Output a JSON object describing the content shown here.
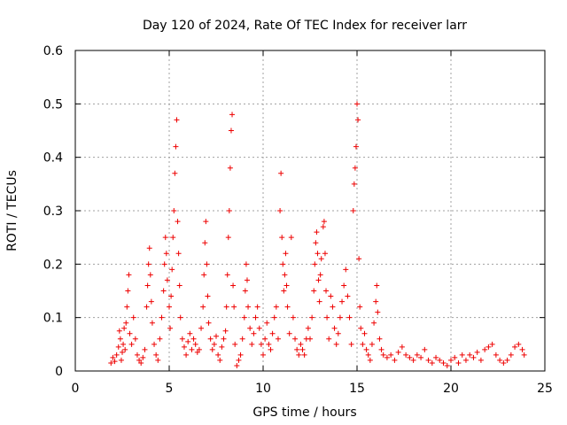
{
  "chart_data": {
    "type": "scatter",
    "title": "Day 120 of 2024, Rate Of TEC Index for receiver larr",
    "xlabel": "GPS time / hours",
    "ylabel": "ROTI / TECUs",
    "xlim": [
      0,
      25
    ],
    "ylim": [
      0,
      0.6
    ],
    "x_ticks": [
      0,
      5,
      10,
      15,
      20,
      25
    ],
    "x_tick_labels": [
      "0",
      "5",
      "10",
      "15",
      "20",
      "25"
    ],
    "y_ticks": [
      0,
      0.1,
      0.2,
      0.3,
      0.4,
      0.5,
      0.6
    ],
    "y_tick_labels": [
      "0",
      "0.1",
      "0.2",
      "0.3",
      "0.4",
      "0.5",
      "0.6"
    ],
    "grid": true,
    "marker": "plus",
    "color": "#ee0000",
    "series": [
      {
        "points": [
          [
            1.9,
            0.015
          ],
          [
            2.0,
            0.025
          ],
          [
            2.1,
            0.018
          ],
          [
            2.2,
            0.03
          ],
          [
            2.3,
            0.045
          ],
          [
            2.35,
            0.075
          ],
          [
            2.4,
            0.06
          ],
          [
            2.45,
            0.02
          ],
          [
            2.5,
            0.035
          ],
          [
            2.55,
            0.05
          ],
          [
            2.6,
            0.08
          ],
          [
            2.65,
            0.04
          ],
          [
            2.7,
            0.09
          ],
          [
            2.75,
            0.12
          ],
          [
            2.8,
            0.15
          ],
          [
            2.85,
            0.18
          ],
          [
            2.9,
            0.07
          ],
          [
            3.0,
            0.05
          ],
          [
            3.1,
            0.1
          ],
          [
            3.2,
            0.06
          ],
          [
            3.3,
            0.03
          ],
          [
            3.4,
            0.02
          ],
          [
            3.5,
            0.015
          ],
          [
            3.6,
            0.025
          ],
          [
            3.7,
            0.04
          ],
          [
            3.8,
            0.12
          ],
          [
            3.85,
            0.16
          ],
          [
            3.9,
            0.2
          ],
          [
            3.95,
            0.23
          ],
          [
            4.0,
            0.18
          ],
          [
            4.05,
            0.13
          ],
          [
            4.1,
            0.09
          ],
          [
            4.2,
            0.05
          ],
          [
            4.3,
            0.03
          ],
          [
            4.4,
            0.02
          ],
          [
            4.5,
            0.06
          ],
          [
            4.6,
            0.1
          ],
          [
            4.7,
            0.15
          ],
          [
            4.75,
            0.2
          ],
          [
            4.8,
            0.25
          ],
          [
            4.85,
            0.22
          ],
          [
            4.9,
            0.17
          ],
          [
            5.0,
            0.12
          ],
          [
            5.05,
            0.08
          ],
          [
            5.1,
            0.14
          ],
          [
            5.15,
            0.19
          ],
          [
            5.2,
            0.25
          ],
          [
            5.25,
            0.3
          ],
          [
            5.3,
            0.37
          ],
          [
            5.35,
            0.42
          ],
          [
            5.4,
            0.47
          ],
          [
            5.45,
            0.28
          ],
          [
            5.5,
            0.22
          ],
          [
            5.55,
            0.16
          ],
          [
            5.6,
            0.1
          ],
          [
            5.7,
            0.06
          ],
          [
            5.8,
            0.045
          ],
          [
            5.9,
            0.03
          ],
          [
            6.0,
            0.055
          ],
          [
            6.1,
            0.07
          ],
          [
            6.2,
            0.04
          ],
          [
            6.3,
            0.06
          ],
          [
            6.4,
            0.05
          ],
          [
            6.5,
            0.035
          ],
          [
            6.6,
            0.04
          ],
          [
            6.7,
            0.08
          ],
          [
            6.8,
            0.12
          ],
          [
            6.85,
            0.18
          ],
          [
            6.9,
            0.24
          ],
          [
            6.95,
            0.28
          ],
          [
            7.0,
            0.2
          ],
          [
            7.05,
            0.14
          ],
          [
            7.1,
            0.09
          ],
          [
            7.2,
            0.06
          ],
          [
            7.3,
            0.04
          ],
          [
            7.4,
            0.05
          ],
          [
            7.5,
            0.065
          ],
          [
            7.6,
            0.03
          ],
          [
            7.7,
            0.02
          ],
          [
            7.8,
            0.045
          ],
          [
            7.9,
            0.06
          ],
          [
            8.0,
            0.075
          ],
          [
            8.05,
            0.12
          ],
          [
            8.1,
            0.18
          ],
          [
            8.15,
            0.25
          ],
          [
            8.2,
            0.3
          ],
          [
            8.25,
            0.38
          ],
          [
            8.3,
            0.45
          ],
          [
            8.35,
            0.48
          ],
          [
            8.4,
            0.16
          ],
          [
            8.45,
            0.12
          ],
          [
            8.5,
            0.05
          ],
          [
            8.6,
            0.01
          ],
          [
            8.7,
            0.02
          ],
          [
            8.8,
            0.03
          ],
          [
            8.9,
            0.06
          ],
          [
            9.0,
            0.1
          ],
          [
            9.05,
            0.15
          ],
          [
            9.1,
            0.2
          ],
          [
            9.15,
            0.17
          ],
          [
            9.2,
            0.12
          ],
          [
            9.3,
            0.08
          ],
          [
            9.4,
            0.05
          ],
          [
            9.5,
            0.07
          ],
          [
            9.6,
            0.1
          ],
          [
            9.7,
            0.12
          ],
          [
            9.8,
            0.08
          ],
          [
            9.9,
            0.05
          ],
          [
            10.0,
            0.03
          ],
          [
            10.1,
            0.06
          ],
          [
            10.2,
            0.09
          ],
          [
            10.3,
            0.05
          ],
          [
            10.4,
            0.04
          ],
          [
            10.5,
            0.07
          ],
          [
            10.6,
            0.1
          ],
          [
            10.7,
            0.12
          ],
          [
            10.8,
            0.06
          ],
          [
            10.9,
            0.3
          ],
          [
            10.95,
            0.37
          ],
          [
            11.0,
            0.25
          ],
          [
            11.05,
            0.2
          ],
          [
            11.1,
            0.15
          ],
          [
            11.15,
            0.18
          ],
          [
            11.2,
            0.22
          ],
          [
            11.25,
            0.16
          ],
          [
            11.3,
            0.12
          ],
          [
            11.4,
            0.07
          ],
          [
            11.5,
            0.25
          ],
          [
            11.6,
            0.1
          ],
          [
            11.7,
            0.06
          ],
          [
            11.8,
            0.04
          ],
          [
            11.9,
            0.03
          ],
          [
            12.0,
            0.05
          ],
          [
            12.1,
            0.04
          ],
          [
            12.2,
            0.03
          ],
          [
            12.3,
            0.06
          ],
          [
            12.4,
            0.08
          ],
          [
            12.5,
            0.06
          ],
          [
            12.6,
            0.1
          ],
          [
            12.7,
            0.15
          ],
          [
            12.75,
            0.2
          ],
          [
            12.8,
            0.24
          ],
          [
            12.85,
            0.26
          ],
          [
            12.9,
            0.22
          ],
          [
            12.95,
            0.17
          ],
          [
            13.0,
            0.13
          ],
          [
            13.05,
            0.18
          ],
          [
            13.1,
            0.21
          ],
          [
            13.2,
            0.27
          ],
          [
            13.25,
            0.28
          ],
          [
            13.3,
            0.22
          ],
          [
            13.35,
            0.15
          ],
          [
            13.4,
            0.1
          ],
          [
            13.5,
            0.06
          ],
          [
            13.6,
            0.14
          ],
          [
            13.7,
            0.12
          ],
          [
            13.8,
            0.08
          ],
          [
            13.9,
            0.05
          ],
          [
            14.0,
            0.07
          ],
          [
            14.1,
            0.1
          ],
          [
            14.2,
            0.13
          ],
          [
            14.3,
            0.16
          ],
          [
            14.4,
            0.19
          ],
          [
            14.5,
            0.14
          ],
          [
            14.6,
            0.1
          ],
          [
            14.7,
            0.05
          ],
          [
            14.8,
            0.3
          ],
          [
            14.85,
            0.35
          ],
          [
            14.9,
            0.38
          ],
          [
            14.95,
            0.42
          ],
          [
            15.0,
            0.5
          ],
          [
            15.05,
            0.47
          ],
          [
            15.1,
            0.21
          ],
          [
            15.15,
            0.12
          ],
          [
            15.2,
            0.08
          ],
          [
            15.3,
            0.05
          ],
          [
            15.4,
            0.07
          ],
          [
            15.5,
            0.04
          ],
          [
            15.6,
            0.03
          ],
          [
            15.7,
            0.02
          ],
          [
            15.8,
            0.05
          ],
          [
            15.9,
            0.09
          ],
          [
            16.0,
            0.13
          ],
          [
            16.05,
            0.16
          ],
          [
            16.1,
            0.11
          ],
          [
            16.2,
            0.06
          ],
          [
            16.3,
            0.04
          ],
          [
            16.4,
            0.03
          ],
          [
            16.6,
            0.025
          ],
          [
            16.8,
            0.03
          ],
          [
            17.0,
            0.02
          ],
          [
            17.2,
            0.035
          ],
          [
            17.4,
            0.045
          ],
          [
            17.6,
            0.03
          ],
          [
            17.8,
            0.025
          ],
          [
            18.0,
            0.02
          ],
          [
            18.2,
            0.03
          ],
          [
            18.4,
            0.025
          ],
          [
            18.6,
            0.04
          ],
          [
            18.8,
            0.02
          ],
          [
            19.0,
            0.015
          ],
          [
            19.2,
            0.025
          ],
          [
            19.4,
            0.02
          ],
          [
            19.6,
            0.015
          ],
          [
            19.8,
            0.01
          ],
          [
            20.0,
            0.02
          ],
          [
            20.2,
            0.025
          ],
          [
            20.4,
            0.015
          ],
          [
            20.6,
            0.03
          ],
          [
            20.8,
            0.02
          ],
          [
            21.0,
            0.03
          ],
          [
            21.2,
            0.025
          ],
          [
            21.4,
            0.035
          ],
          [
            21.6,
            0.02
          ],
          [
            21.8,
            0.04
          ],
          [
            22.0,
            0.045
          ],
          [
            22.2,
            0.05
          ],
          [
            22.4,
            0.03
          ],
          [
            22.6,
            0.02
          ],
          [
            22.8,
            0.015
          ],
          [
            23.0,
            0.02
          ],
          [
            23.2,
            0.03
          ],
          [
            23.4,
            0.045
          ],
          [
            23.6,
            0.05
          ],
          [
            23.8,
            0.04
          ],
          [
            23.9,
            0.03
          ]
        ]
      }
    ]
  }
}
